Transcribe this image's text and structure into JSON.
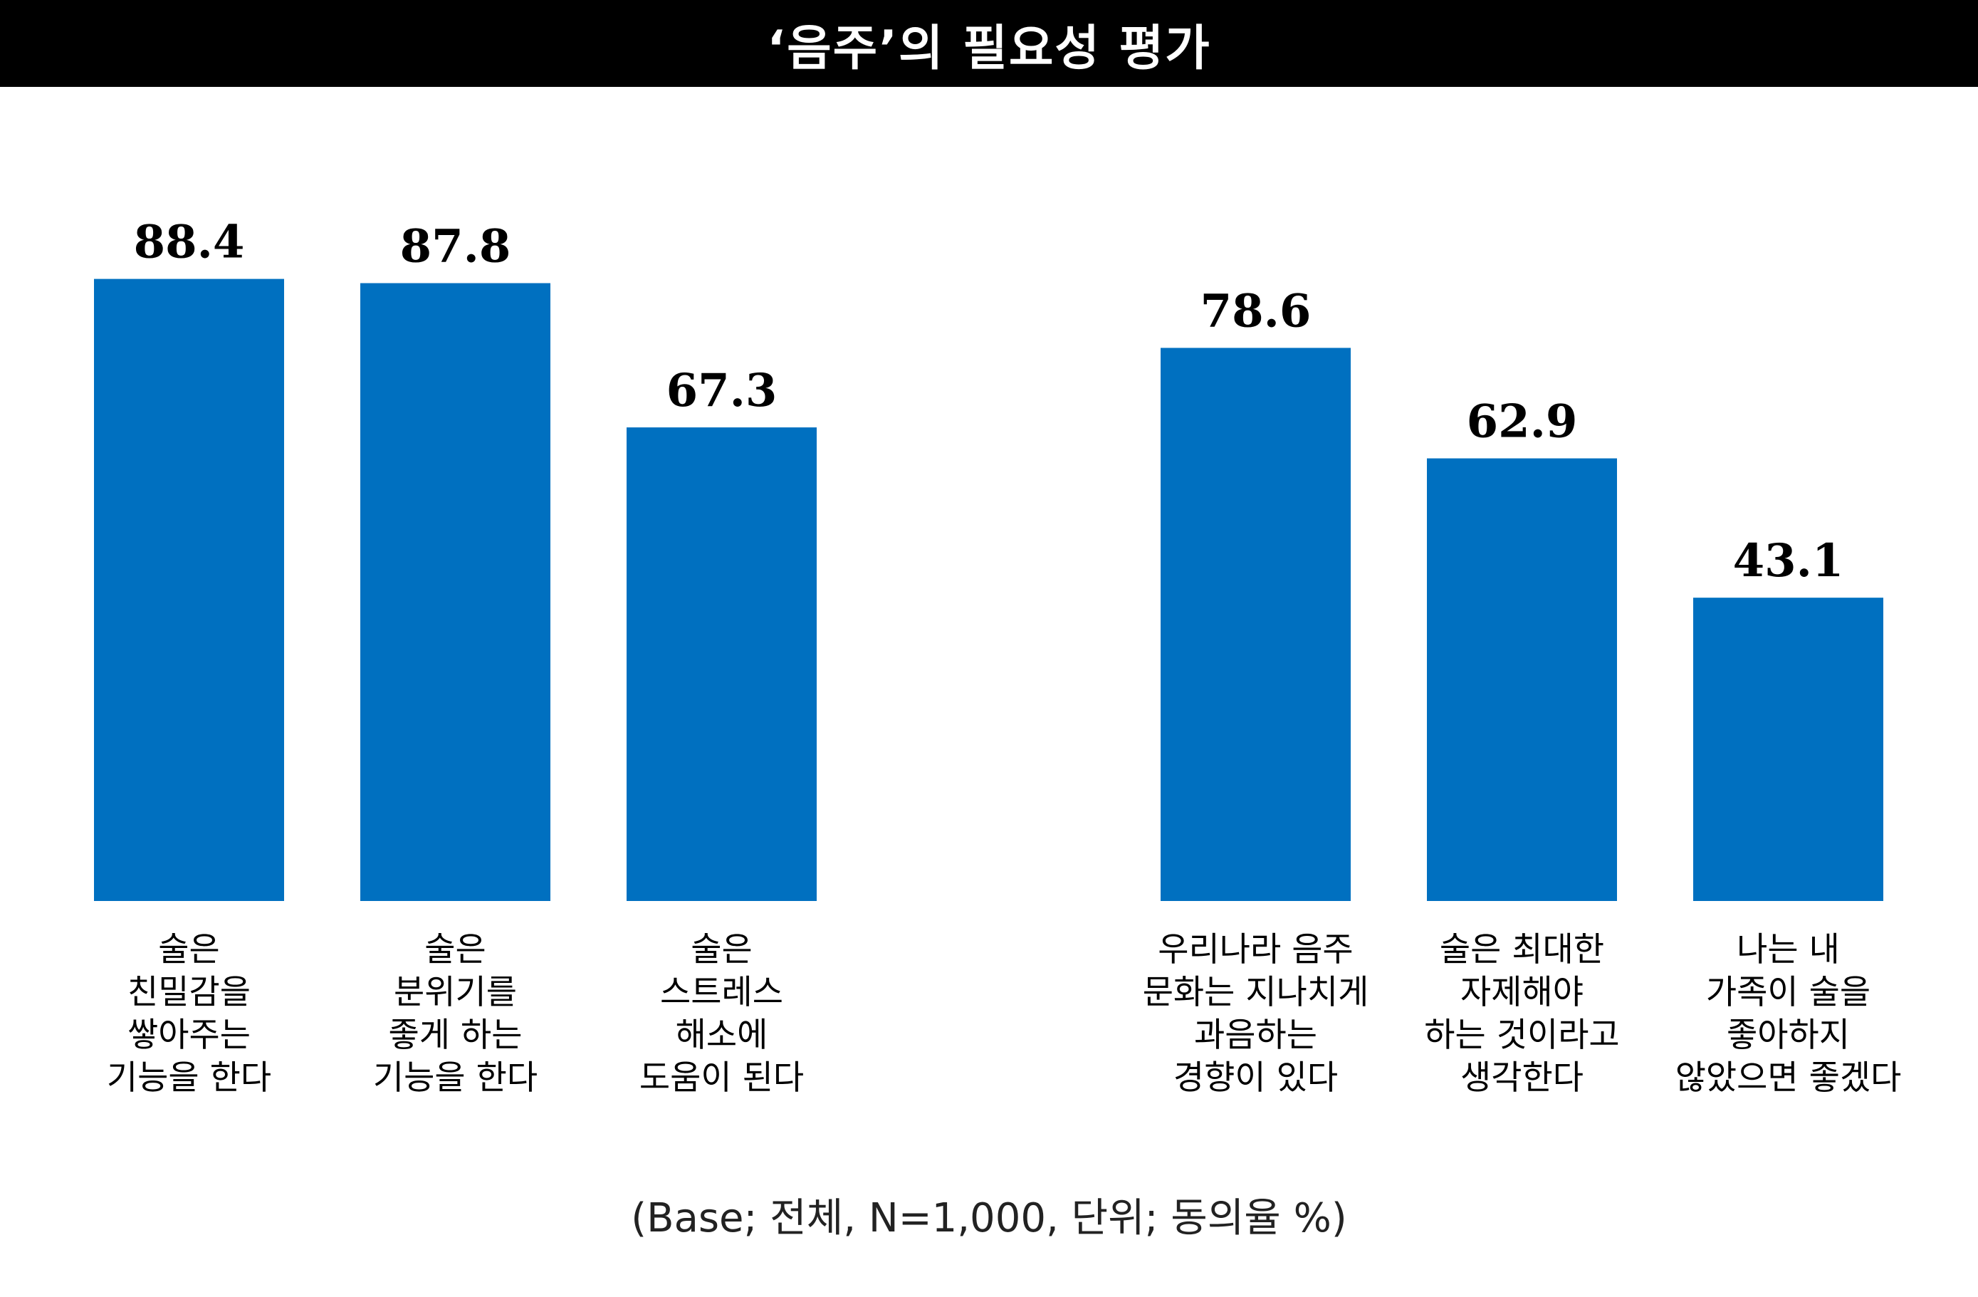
{
  "title": "‘음주’의 필요성 평가",
  "footnote": "(Base; 전체, N=1,000, 단위; 동의율 %)",
  "colors": {
    "bar": "#0070C0",
    "title_bg": "#000000",
    "title_text": "#FFFFFF"
  },
  "chart_data": {
    "type": "bar",
    "title": "‘음주’의 필요성 평가",
    "xlabel": "",
    "ylabel": "",
    "ylim": [
      0,
      100
    ],
    "grid": false,
    "legend": "none",
    "groups": [
      {
        "categories": [
          [
            "술은",
            "친밀감을",
            "쌓아주는",
            "기능을 한다"
          ],
          [
            "술은",
            "분위기를",
            "좋게 하는",
            "기능을 한다"
          ],
          [
            "술은",
            "스트레스",
            "해소에",
            "도움이 된다"
          ]
        ],
        "values": [
          88.4,
          87.8,
          67.3
        ]
      },
      {
        "categories": [
          [
            "우리나라 음주",
            "문화는 지나치게",
            "과음하는",
            "경향이 있다"
          ],
          [
            "술은 최대한",
            "자제해야",
            "하는 것이라고",
            "생각한다"
          ],
          [
            "나는 내",
            "가족이 술을",
            "좋아하지",
            "않았으면 좋겠다"
          ]
        ],
        "values": [
          78.6,
          62.9,
          43.1
        ]
      }
    ]
  }
}
